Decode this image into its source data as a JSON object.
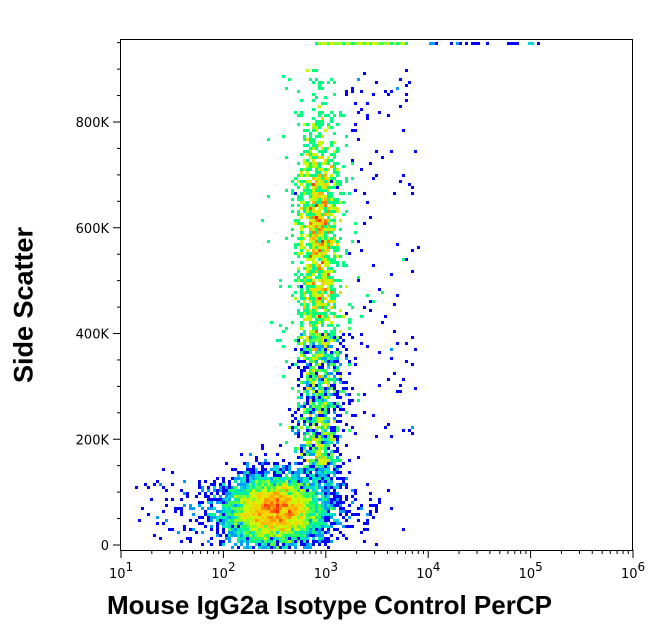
{
  "chart_data": {
    "type": "heatmap",
    "subtype": "flow-cytometry-density-dot-plot",
    "xlabel": "Mouse IgG2a Isotype Control PerCP",
    "ylabel": "Side Scatter",
    "x_scale": "log",
    "xlim": [
      10,
      1000000
    ],
    "x_ticks": [
      {
        "base": "10",
        "exp": "1"
      },
      {
        "base": "10",
        "exp": "2"
      },
      {
        "base": "10",
        "exp": "3"
      },
      {
        "base": "10",
        "exp": "4"
      },
      {
        "base": "10",
        "exp": "5"
      },
      {
        "base": "10",
        "exp": "6"
      }
    ],
    "y_scale": "linear",
    "ylim": [
      -9000,
      957000
    ],
    "y_ticks": [
      "0",
      "200K",
      "400K",
      "600K",
      "800K"
    ],
    "grid": false,
    "color_scale": [
      "#0000ff",
      "#00c8ff",
      "#00ff80",
      "#c8ff00",
      "#ffc800",
      "#ff2000"
    ],
    "populations": [
      {
        "x_center": 320,
        "x_spread_log": 0.22,
        "y_center": 65000,
        "y_spread": 32000,
        "relative_density": "highest"
      },
      {
        "x_center": 850,
        "x_spread_log": 0.1,
        "y_range": [
          150000,
          880000
        ],
        "y_peak": 600000,
        "relative_density": "high"
      },
      {
        "x_range": [
          800,
          7000
        ],
        "y_center": 950000,
        "relative_density": "saturated-edge"
      }
    ]
  }
}
